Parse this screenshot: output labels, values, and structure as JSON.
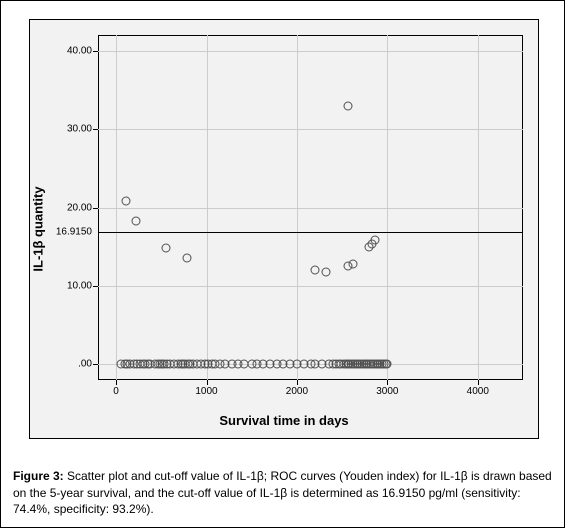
{
  "chart": {
    "type": "scatter",
    "background_color": "#f2f2f2",
    "grid_color": "#cccccc",
    "border_color": "#000000",
    "xlabel": "Survival time in days",
    "ylabel": "IL-1β quantity",
    "label_fontsize": 13,
    "tick_fontsize": 10,
    "xlim": [
      -200,
      4500
    ],
    "ylim": [
      -2,
      42
    ],
    "xticks": [
      0,
      1000,
      2000,
      3000,
      4000
    ],
    "xtick_labels": [
      "0",
      "1000",
      "2000",
      "3000",
      "4000"
    ],
    "yticks": [
      0,
      10,
      20,
      30,
      40
    ],
    "ytick_labels": [
      ".00",
      "10.00",
      "20.00",
      "30.00",
      "40.00"
    ],
    "cutoff_line": {
      "y": 16.915,
      "label": "16.9150",
      "color": "#000000"
    },
    "marker_style": {
      "shape": "circle",
      "size": 7,
      "fill": "transparent",
      "stroke": "#505050"
    },
    "points": [
      [
        110,
        20.8
      ],
      [
        220,
        18.3
      ],
      [
        550,
        14.8
      ],
      [
        780,
        13.5
      ],
      [
        2200,
        12.0
      ],
      [
        2320,
        11.8
      ],
      [
        2560,
        33.0
      ],
      [
        2560,
        12.5
      ],
      [
        2620,
        12.8
      ],
      [
        2800,
        15.0
      ],
      [
        2830,
        15.4
      ],
      [
        2860,
        15.8
      ],
      [
        50,
        0
      ],
      [
        100,
        0
      ],
      [
        120,
        0
      ],
      [
        150,
        0
      ],
      [
        200,
        0
      ],
      [
        230,
        0
      ],
      [
        260,
        0
      ],
      [
        300,
        0
      ],
      [
        320,
        0
      ],
      [
        350,
        0
      ],
      [
        380,
        0
      ],
      [
        430,
        0
      ],
      [
        460,
        0
      ],
      [
        490,
        0
      ],
      [
        510,
        0
      ],
      [
        530,
        0
      ],
      [
        560,
        0
      ],
      [
        600,
        0
      ],
      [
        640,
        0
      ],
      [
        680,
        0
      ],
      [
        720,
        0
      ],
      [
        740,
        0
      ],
      [
        760,
        0
      ],
      [
        800,
        0
      ],
      [
        820,
        0
      ],
      [
        850,
        0
      ],
      [
        900,
        0
      ],
      [
        940,
        0
      ],
      [
        980,
        0
      ],
      [
        1020,
        0
      ],
      [
        1060,
        0
      ],
      [
        1090,
        0
      ],
      [
        1150,
        0
      ],
      [
        1200,
        0
      ],
      [
        1280,
        0
      ],
      [
        1350,
        0
      ],
      [
        1420,
        0
      ],
      [
        1500,
        0
      ],
      [
        1560,
        0
      ],
      [
        1620,
        0
      ],
      [
        1700,
        0
      ],
      [
        1780,
        0
      ],
      [
        1850,
        0
      ],
      [
        1920,
        0
      ],
      [
        2000,
        0
      ],
      [
        2080,
        0
      ],
      [
        2150,
        0
      ],
      [
        2200,
        0
      ],
      [
        2280,
        0
      ],
      [
        2350,
        0
      ],
      [
        2400,
        0
      ],
      [
        2430,
        0
      ],
      [
        2460,
        0
      ],
      [
        2490,
        0
      ],
      [
        2520,
        0
      ],
      [
        2540,
        0
      ],
      [
        2560,
        0
      ],
      [
        2580,
        0
      ],
      [
        2600,
        0
      ],
      [
        2620,
        0
      ],
      [
        2640,
        0
      ],
      [
        2660,
        0
      ],
      [
        2680,
        0
      ],
      [
        2700,
        0
      ],
      [
        2720,
        0
      ],
      [
        2740,
        0
      ],
      [
        2760,
        0
      ],
      [
        2780,
        0
      ],
      [
        2800,
        0
      ],
      [
        2820,
        0
      ],
      [
        2840,
        0
      ],
      [
        2860,
        0
      ],
      [
        2880,
        0
      ],
      [
        2900,
        0
      ],
      [
        2920,
        0
      ],
      [
        2940,
        0
      ],
      [
        2960,
        0
      ],
      [
        2980,
        0
      ],
      [
        3000,
        0
      ]
    ]
  },
  "caption": {
    "label": "Figure 3:",
    "text": " Scatter plot and cut-off value of IL-1β; ROC curves (Youden index) for IL-1β is drawn based on the 5-year survival, and the cut-off value of IL-1β is determined as 16.9150 pg/ml (sensitivity: 74.4%, specificity: 93.2%)."
  }
}
